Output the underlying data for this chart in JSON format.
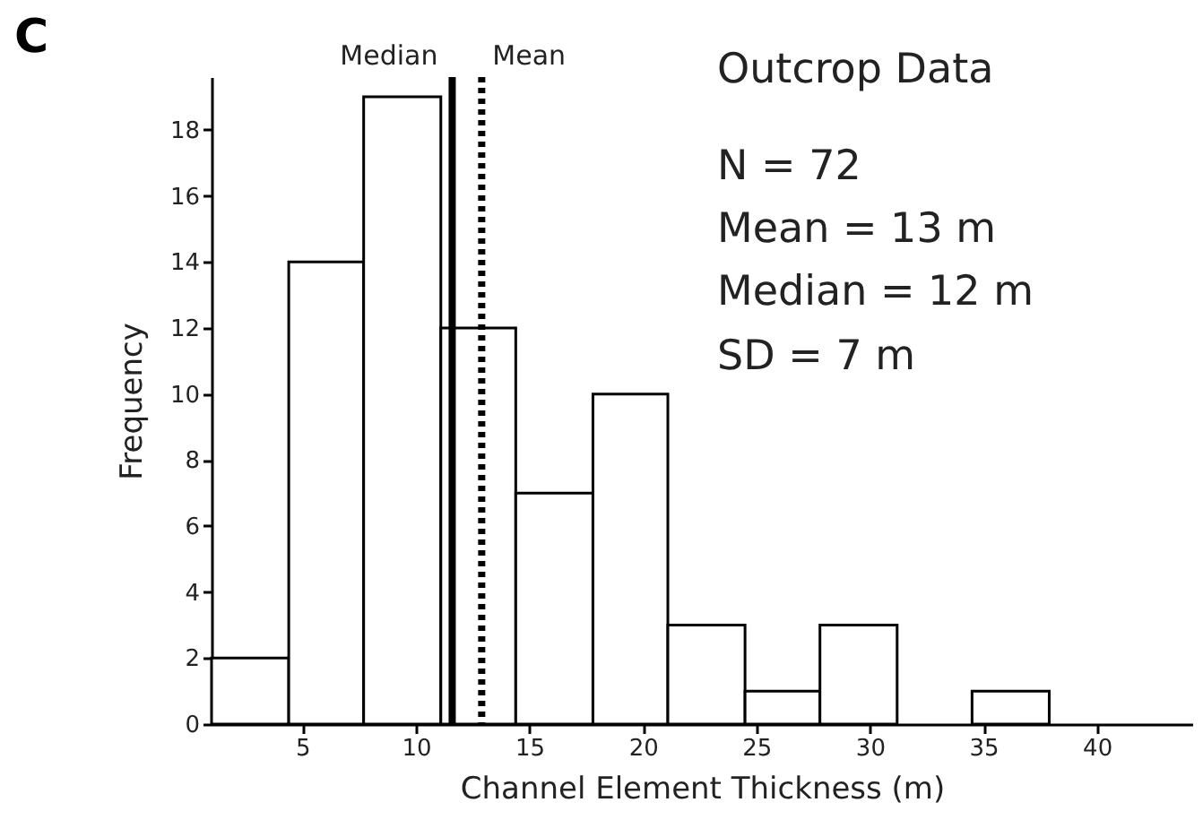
{
  "chart_data": {
    "type": "histogram",
    "xlabel": "Channel Element Thickness (m)",
    "ylabel": "Frequency",
    "bins": [
      1,
      4.4,
      7.7,
      11.1,
      14.4,
      17.8,
      21.1,
      24.5,
      27.8,
      31.2,
      34.5,
      37.9
    ],
    "values": [
      2,
      14,
      19,
      12,
      7,
      10,
      3,
      1,
      3,
      0,
      1
    ],
    "color": "#ffffff",
    "xlim": [
      1,
      44.2
    ],
    "xticks": [
      5,
      10,
      15,
      20,
      25,
      30,
      35,
      40
    ],
    "ylim": [
      0,
      19.6
    ],
    "yticks": [
      0,
      2,
      4,
      6,
      8,
      10,
      12,
      14,
      16,
      18
    ],
    "grid": false,
    "ref_lines": [
      {
        "axis": "x",
        "value": 11.6,
        "label": "Median",
        "line_style": "solid",
        "color": "#000000"
      },
      {
        "axis": "x",
        "value": 12.9,
        "label": "Mean",
        "line_style": "dotted",
        "color": "#000000"
      }
    ],
    "annotations": [
      "C",
      "Outcrop Data",
      "N = 72",
      "Mean = 13 m",
      "Median = 12 m",
      "SD = 7 m"
    ]
  }
}
